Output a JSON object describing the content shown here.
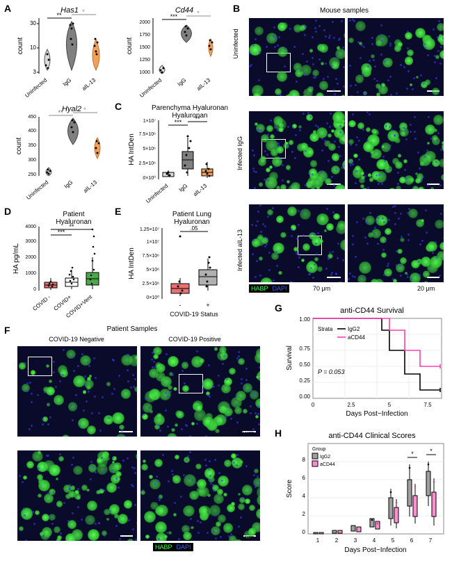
{
  "panels": {
    "A": {
      "charts": [
        {
          "title": "Has1",
          "type": "violin",
          "ylabel": "count",
          "yscale": "log",
          "yticks": [
            3,
            10,
            30
          ],
          "categories": [
            "Uninfected",
            "IgG",
            "aIL-13"
          ],
          "colors": [
            "#dcdcdc",
            "#808080",
            "#f5a05a"
          ],
          "points": [
            [
              3,
              5,
              8,
              4
            ],
            [
              25,
              30,
              28,
              32,
              15
            ],
            [
              8,
              10,
              7,
              9,
              12
            ]
          ],
          "sig": [
            [
              "Uninfected",
              "IgG",
              "**"
            ],
            [
              "IgG",
              "aIL-13",
              "*"
            ]
          ]
        },
        {
          "title": "Cd44",
          "type": "violin",
          "ylabel": "count",
          "yscale": "linear",
          "yticks": [
            1000,
            1250,
            1500,
            1750,
            2000
          ],
          "categories": [
            "Uninfected",
            "IgG",
            "aIL-13"
          ],
          "colors": [
            "#dcdcdc",
            "#808080",
            "#f5a05a"
          ],
          "points": [
            [
              950,
              1000,
              900,
              1050
            ],
            [
              1700,
              1800,
              1750,
              1900,
              1600
            ],
            [
              1450,
              1500,
              1400,
              1550,
              1500
            ]
          ],
          "sig": [
            [
              "Uninfected",
              "IgG",
              "***"
            ],
            [
              "IgG",
              "aIL-13",
              "*"
            ]
          ]
        },
        {
          "title": "Hyal2",
          "type": "violin",
          "ylabel": "count",
          "yscale": "linear",
          "yticks": [
            250,
            300,
            350,
            400,
            450
          ],
          "categories": [
            "Uninfected",
            "IgG",
            "aIL-13"
          ],
          "colors": [
            "#dcdcdc",
            "#808080",
            "#f5a05a"
          ],
          "points": [
            [
              250,
              260,
              255,
              270
            ],
            [
              400,
              430,
              380,
              420,
              440
            ],
            [
              330,
              350,
              320,
              360,
              340
            ]
          ],
          "sig": [
            [
              "Uninfected",
              "IgG",
              "**"
            ],
            [
              "IgG",
              "aIL-13",
              "*"
            ]
          ]
        }
      ]
    },
    "B": {
      "title": "Mouse samples",
      "rows": [
        "Uninfected",
        "Infected IgG",
        "Infected aIL-13"
      ],
      "scales": [
        "70 μm",
        "20 μm"
      ],
      "legend": [
        [
          "HABP",
          "#3fff3f"
        ],
        [
          "DAPI",
          "#4060ff"
        ]
      ]
    },
    "C": {
      "title": "Parenchyma Hyaluronan",
      "type": "box",
      "ylabel": "HA IntDen",
      "yticks_labels": [
        "0×10⁰",
        "2.5×10⁶",
        "5×10⁶",
        "7.5×10⁶",
        "1×10⁷"
      ],
      "yticks": [
        0,
        2.5,
        5,
        7.5,
        10
      ],
      "categories": [
        "Uninfected",
        "IgG",
        "aIL-13"
      ],
      "colors": [
        "#dcdcdc",
        "#808080",
        "#f5a05a"
      ],
      "box_stats": [
        [
          0.3,
          0.5,
          0.6,
          0.8,
          1.2
        ],
        [
          1.0,
          2.0,
          2.8,
          4.5,
          6.0
        ],
        [
          0.5,
          0.8,
          1.0,
          1.5,
          2.5
        ]
      ],
      "points": [
        [
          0.5,
          0.6,
          0.7,
          0.4
        ],
        [
          2.5,
          3.0,
          1.5,
          5.0,
          6.5,
          1.0,
          4.0,
          2.0
        ],
        [
          1.0,
          1.2,
          0.8,
          1.8,
          2.3,
          0.6
        ]
      ],
      "sig": [
        [
          "Uninfected",
          "IgG",
          "***"
        ],
        [
          "IgG",
          "aIL-13",
          "**"
        ]
      ]
    },
    "D": {
      "title": "Patient Hyaluronan",
      "type": "box",
      "ylabel": "HA pg/mL",
      "yticks": [
        0,
        1000,
        2000,
        3000,
        4000
      ],
      "categories": [
        "COVID -",
        "COVID+",
        "COVID+Vent"
      ],
      "colors": [
        "#e87070",
        "#ffffff",
        "#4aa84a"
      ],
      "box_stats": [
        [
          100,
          200,
          300,
          450,
          700
        ],
        [
          150,
          300,
          450,
          700,
          1200
        ],
        [
          200,
          400,
          700,
          1200,
          2000
        ]
      ],
      "sig": [
        [
          "COVID -",
          "COVID+",
          "***"
        ],
        [
          "COVID -",
          "COVID+Vent",
          "**"
        ]
      ]
    },
    "E": {
      "title": "Patient Lung Hyaluronan",
      "type": "box",
      "ylabel": "HA IntDen",
      "yticks_labels": [
        "0×10⁰",
        "2.5×10⁶",
        "5×10⁶",
        "7.5×10⁶",
        "1×10⁷",
        "1.25×10⁷"
      ],
      "yticks": [
        0,
        2.5,
        5,
        7.5,
        10,
        12.5
      ],
      "categories": [
        "-",
        "+"
      ],
      "xlabel": "COVID-19 Status",
      "colors": [
        "#e87070",
        "#b0b0b0"
      ],
      "box_stats": [
        [
          1.0,
          1.5,
          2.0,
          2.8,
          3.5
        ],
        [
          2.0,
          3.0,
          4.0,
          5.5,
          7.0
        ]
      ],
      "points": [
        [
          1.5,
          2.0,
          2.5,
          1.0,
          9.5,
          3.0
        ],
        [
          3.0,
          4.0,
          5.0,
          6.0,
          3.5,
          7.5,
          2.5,
          4.5,
          5.5
        ]
      ],
      "sig": [
        [
          "–",
          "+",
          ".05"
        ]
      ]
    },
    "F": {
      "title": "Patient Samples",
      "cols": [
        "COVID-19  Negative",
        "COVID-19 Positive"
      ],
      "scales": [
        "70 μm",
        "20 μm"
      ],
      "legend": [
        [
          "HABP",
          "#3fff3f"
        ],
        [
          "DAPI",
          "#4060ff"
        ]
      ]
    },
    "G": {
      "title": "anti-CD44 Survival",
      "type": "survival",
      "xlabel": "Days Post−Infection",
      "ylabel": "Survival",
      "xticks": [
        0,
        2.5,
        5,
        7.5
      ],
      "yticks": [
        0.0,
        0.25,
        0.5,
        0.75,
        1.0
      ],
      "strata_label": "Strata",
      "series": [
        {
          "name": "IgG2",
          "color": "#000000",
          "steps": [
            [
              0,
              1
            ],
            [
              4.5,
              1
            ],
            [
              4.5,
              0.85
            ],
            [
              5,
              0.85
            ],
            [
              5,
              0.6
            ],
            [
              6,
              0.6
            ],
            [
              6,
              0.3
            ],
            [
              7,
              0.3
            ],
            [
              7,
              0.1
            ],
            [
              8.5,
              0.1
            ]
          ]
        },
        {
          "name": "aCD44",
          "color": "#ff3fb0",
          "steps": [
            [
              0,
              1
            ],
            [
              5,
              1
            ],
            [
              5,
              0.85
            ],
            [
              6,
              0.85
            ],
            [
              6,
              0.6
            ],
            [
              7,
              0.6
            ],
            [
              7,
              0.4
            ],
            [
              8.5,
              0.4
            ]
          ]
        }
      ],
      "pvalue": "P = 0.053"
    },
    "H": {
      "title": "anti-CD44 Clinical Scores",
      "type": "box-grouped",
      "xlabel": "Days Post−Infection",
      "ylabel": "Score",
      "group_label": "Group",
      "xticks": [
        1,
        2,
        3,
        4,
        5,
        6,
        7
      ],
      "yticks": [
        0,
        2,
        4,
        6,
        8
      ],
      "groups": [
        {
          "name": "IgG2",
          "color": "#a0a0a0"
        },
        {
          "name": "aCD44",
          "color": "#ff8fd0"
        }
      ],
      "data": {
        "1": [
          [
            0,
            0,
            0,
            0,
            0
          ],
          [
            0,
            0,
            0,
            0,
            0
          ]
        ],
        "2": [
          [
            0,
            0,
            0,
            0.5,
            1
          ],
          [
            0,
            0,
            0,
            0.5,
            1
          ]
        ],
        "3": [
          [
            0,
            0.5,
            1,
            1.5,
            2
          ],
          [
            0,
            0,
            0.5,
            1,
            1.5
          ]
        ],
        "4": [
          [
            1,
            1.5,
            2,
            2.5,
            3
          ],
          [
            0.5,
            1,
            1.5,
            2,
            2.5
          ]
        ],
        "5": [
          [
            2,
            3,
            4,
            5,
            6
          ],
          [
            1,
            2,
            2.5,
            3.5,
            5
          ]
        ],
        "6": [
          [
            3,
            4,
            5,
            6.5,
            8
          ],
          [
            2,
            3,
            4,
            5,
            6
          ]
        ],
        "7": [
          [
            4,
            5,
            6,
            7,
            8
          ],
          [
            2,
            3,
            4,
            5,
            7
          ]
        ]
      },
      "sig": [
        [
          "6",
          "*"
        ],
        [
          "7",
          "*"
        ]
      ]
    }
  },
  "colors": {
    "bg": "#ffffff",
    "text": "#000000",
    "grid": "#dddddd"
  },
  "fonts": {
    "panel_label": 14,
    "title": 11,
    "axis": 9,
    "tick": 8
  }
}
